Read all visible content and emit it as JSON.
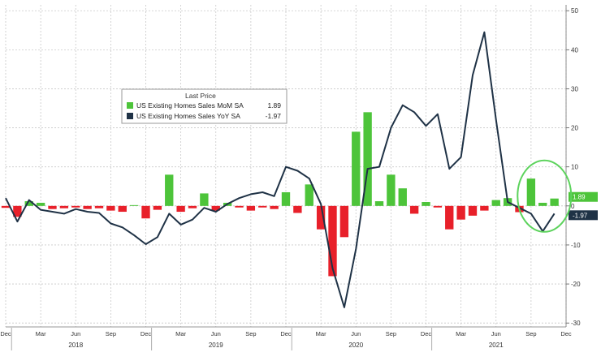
{
  "chart_data": {
    "type": "bar",
    "x": [
      "Dec 2017",
      "Jan 2018",
      "Feb 2018",
      "Mar 2018",
      "Apr 2018",
      "May 2018",
      "Jun 2018",
      "Jul 2018",
      "Aug 2018",
      "Sep 2018",
      "Oct 2018",
      "Nov 2018",
      "Dec 2018",
      "Jan 2019",
      "Feb 2019",
      "Mar 2019",
      "Apr 2019",
      "May 2019",
      "Jun 2019",
      "Jul 2019",
      "Aug 2019",
      "Sep 2019",
      "Oct 2019",
      "Nov 2019",
      "Dec 2019",
      "Jan 2020",
      "Feb 2020",
      "Mar 2020",
      "Apr 2020",
      "May 2020",
      "Jun 2020",
      "Jul 2020",
      "Aug 2020",
      "Sep 2020",
      "Oct 2020",
      "Nov 2020",
      "Dec 2020",
      "Jan 2021",
      "Feb 2021",
      "Mar 2021",
      "Apr 2021",
      "May 2021",
      "Jun 2021",
      "Jul 2021",
      "Aug 2021",
      "Sep 2021",
      "Oct 2021",
      "Nov 2021"
    ],
    "series": [
      {
        "name": "US Existing Homes Sales MoM SA",
        "kind": "bar",
        "values": [
          -0.5,
          -2.8,
          1.2,
          0.8,
          -0.8,
          -0.6,
          -0.4,
          -0.8,
          -0.6,
          -1.2,
          -1.5,
          0.2,
          -3.2,
          -1.0,
          8.0,
          -1.5,
          -0.6,
          3.2,
          -1.2,
          0.8,
          -0.4,
          -1.2,
          -0.4,
          -0.8,
          3.5,
          -1.8,
          5.5,
          -6.0,
          -18.0,
          -8.0,
          19.0,
          24.0,
          1.2,
          8.0,
          4.5,
          -2.0,
          1.0,
          -0.4,
          -6.0,
          -3.5,
          -2.5,
          -1.2,
          1.5,
          2.0,
          -1.6,
          7.0,
          0.8,
          1.89
        ]
      },
      {
        "name": "US Existing Homes Sales YoY SA",
        "kind": "line",
        "values": [
          2.0,
          -4.0,
          1.5,
          -1.0,
          -1.5,
          -2.0,
          -0.8,
          -1.5,
          -1.8,
          -4.5,
          -5.5,
          -7.5,
          -9.8,
          -8.0,
          -2.0,
          -4.8,
          -3.5,
          -0.5,
          -1.5,
          0.5,
          2.0,
          3.0,
          3.5,
          2.5,
          10.0,
          9.0,
          7.0,
          0.5,
          -16.0,
          -26.0,
          -11.0,
          9.5,
          10.0,
          20.0,
          25.8,
          24.0,
          20.5,
          23.5,
          9.5,
          12.5,
          33.5,
          44.5,
          22.0,
          1.0,
          -0.5,
          -2.0,
          -6.5,
          -1.97
        ]
      }
    ],
    "legend": {
      "title": "Last Price",
      "entries": [
        {
          "name": "US Existing Homes Sales MoM SA",
          "last": "1.89",
          "color": "#4dc43a"
        },
        {
          "name": "US Existing Homes Sales YoY SA",
          "last": "-1.97",
          "color": "#1f3246"
        }
      ],
      "placement": "top-left"
    },
    "y_axis": {
      "side": "right",
      "ticks": [
        50,
        40,
        30,
        20,
        10,
        0,
        -10,
        -20,
        -30
      ],
      "ylim": [
        -31,
        51.5
      ]
    },
    "x_axis": {
      "month_labels": [
        {
          "label": "Dec",
          "index": 0
        },
        {
          "label": "Mar",
          "index": 3
        },
        {
          "label": "Jun",
          "index": 6
        },
        {
          "label": "Sep",
          "index": 9
        },
        {
          "label": "Dec",
          "index": 12
        },
        {
          "label": "Mar",
          "index": 15
        },
        {
          "label": "Jun",
          "index": 18
        },
        {
          "label": "Sep",
          "index": 21
        },
        {
          "label": "Dec",
          "index": 24
        },
        {
          "label": "Mar",
          "index": 27
        },
        {
          "label": "Jun",
          "index": 30
        },
        {
          "label": "Sep",
          "index": 33
        },
        {
          "label": "Dec",
          "index": 36
        },
        {
          "label": "Mar",
          "index": 39
        },
        {
          "label": "Jun",
          "index": 42
        },
        {
          "label": "Sep",
          "index": 45
        },
        {
          "label": "Dec",
          "index": 48
        }
      ],
      "year_labels": [
        {
          "label": "2018",
          "index": 6
        },
        {
          "label": "2019",
          "index": 18
        },
        {
          "label": "2020",
          "index": 30
        },
        {
          "label": "2021",
          "index": 42
        }
      ]
    },
    "last_value_tags": [
      {
        "value": 1.89,
        "label": "1.89",
        "color": "#4dc43a"
      },
      {
        "value": -1.97,
        "label": "-1.97",
        "color": "#1f3246"
      }
    ],
    "grid": true,
    "annotation": "green ellipse highlighting the last three months",
    "colors": {
      "positive_bar": "#4dc43a",
      "negative_bar": "#e8202a",
      "line": "#1f3246",
      "grid": "#c8c8c8",
      "highlight": "#5cd35c"
    }
  }
}
